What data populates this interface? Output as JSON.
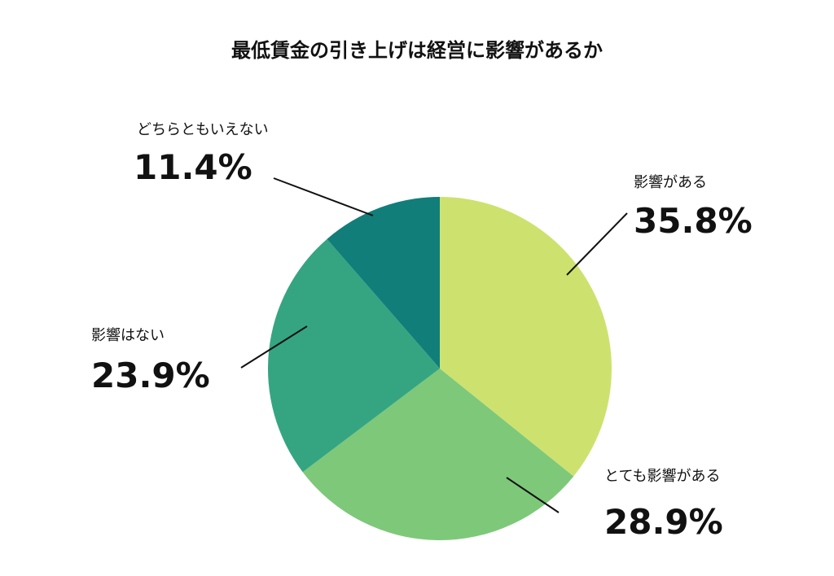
{
  "chart_data": {
    "type": "pie",
    "title": "最低賃金の引き上げは経営に影響があるか",
    "start_angle_deg": 0,
    "direction": "clockwise",
    "slices": [
      {
        "label": "影響がある",
        "value": 35.8,
        "display": "35.8%",
        "color": "#cde26e"
      },
      {
        "label": "とても影響がある",
        "value": 28.9,
        "display": "28.9%",
        "color": "#7ec87a"
      },
      {
        "label": "影響はない",
        "value": 23.9,
        "display": "23.9%",
        "color": "#35a581"
      },
      {
        "label": "どちらともいえない",
        "value": 11.4,
        "display": "11.4%",
        "color": "#117e7a"
      }
    ]
  }
}
